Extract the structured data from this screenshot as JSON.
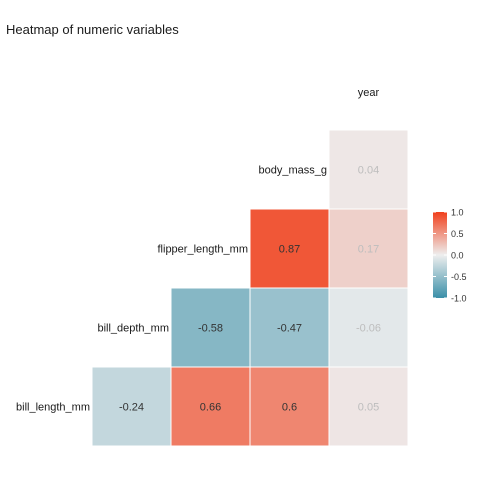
{
  "chart_data": {
    "type": "heatmap",
    "title": "Heatmap of numeric variables",
    "variables": [
      "bill_length_mm",
      "bill_depth_mm",
      "flipper_length_mm",
      "body_mass_g",
      "year"
    ],
    "cells": [
      {
        "row": "bill_length_mm",
        "col": "bill_depth_mm",
        "value": -0.24
      },
      {
        "row": "bill_length_mm",
        "col": "flipper_length_mm",
        "value": 0.66
      },
      {
        "row": "bill_length_mm",
        "col": "body_mass_g",
        "value": 0.6
      },
      {
        "row": "bill_length_mm",
        "col": "year",
        "value": 0.05
      },
      {
        "row": "bill_depth_mm",
        "col": "flipper_length_mm",
        "value": -0.58
      },
      {
        "row": "bill_depth_mm",
        "col": "body_mass_g",
        "value": -0.47
      },
      {
        "row": "bill_depth_mm",
        "col": "year",
        "value": -0.06
      },
      {
        "row": "flipper_length_mm",
        "col": "body_mass_g",
        "value": 0.87
      },
      {
        "row": "flipper_length_mm",
        "col": "year",
        "value": 0.17
      },
      {
        "row": "body_mass_g",
        "col": "year",
        "value": 0.04
      }
    ],
    "color_scale": {
      "low": "#3a8fa8",
      "mid": "#eeeeee",
      "high": "#f0401c",
      "limits": [
        -1,
        1
      ]
    },
    "legend": {
      "ticks": [
        1.0,
        0.5,
        0.0,
        -0.5,
        -1.0
      ],
      "tick_labels": [
        "1.0",
        "0.5",
        "0.0",
        "-0.5",
        "-1.0"
      ],
      "position": "right"
    }
  }
}
